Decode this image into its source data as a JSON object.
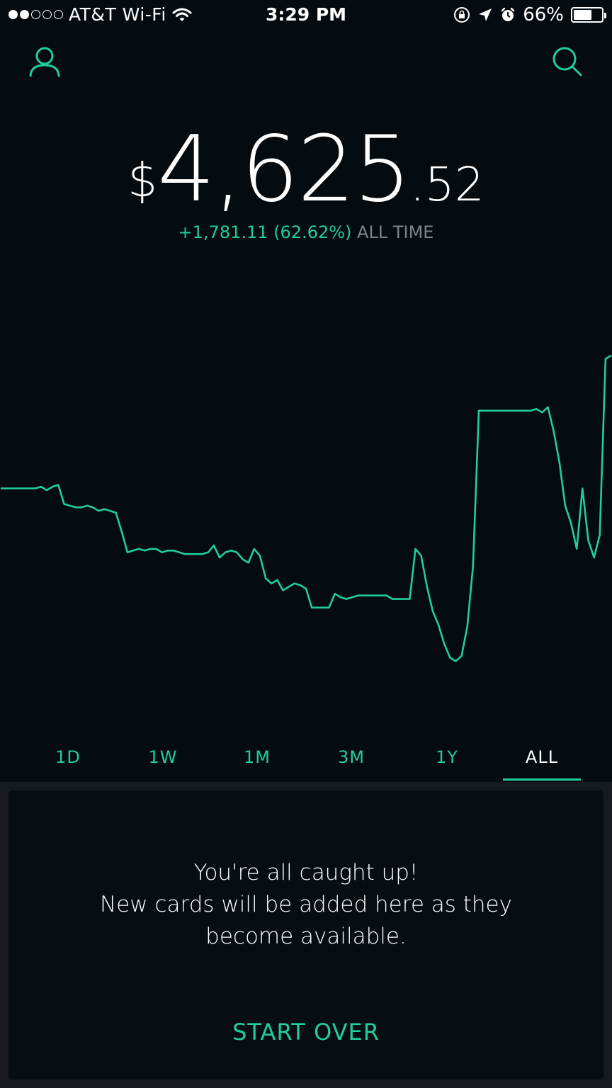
{
  "status_bar": {
    "carrier": "AT&T Wi-Fi",
    "time": "3:29 PM",
    "battery": "66%",
    "battery_level": 0.66,
    "signal_bars_filled": 2,
    "signal_bars_total": 5
  },
  "header": {
    "profile_icon": "person-icon",
    "search_icon": "search-icon"
  },
  "portfolio": {
    "currency": "$",
    "value_main": "4,625",
    "value_cents": ".52",
    "change_amount": "+1,781.11 (62.62%)",
    "change_period": "ALL TIME"
  },
  "colors": {
    "accent": "#21ce99",
    "background": "#040b11",
    "muted": "#7f8487",
    "card_bg": "#060d13",
    "tray_bg": "#16191d"
  },
  "chart_data": {
    "type": "line",
    "series_values": [
      1935,
      1935,
      1935,
      1935,
      1935,
      1935,
      1935,
      1936,
      1934,
      1936,
      1937,
      1926,
      1925,
      1924,
      1924,
      1925,
      1924,
      1922,
      1923,
      1922,
      1921,
      1910,
      1898,
      1899,
      1900,
      1899,
      1900,
      1900,
      1898,
      1899,
      1899,
      1898,
      1897,
      1897,
      1897,
      1897,
      1898,
      1902,
      1895,
      1898,
      1899,
      1898,
      1894,
      1892,
      1900,
      1896,
      1883,
      1880,
      1882,
      1876,
      1878,
      1880,
      1879,
      1877,
      1866,
      1866,
      1866,
      1866,
      1874,
      1872,
      1871,
      1872,
      1873,
      1873,
      1873,
      1873,
      1873,
      1873,
      1871,
      1871,
      1871,
      1871,
      1900,
      1896,
      1878,
      1864,
      1856,
      1845,
      1837,
      1835,
      1838,
      1855,
      1890,
      1980,
      1980,
      1980,
      1980,
      1980,
      1980,
      1980,
      1980,
      1980,
      1980,
      1981,
      1979,
      1982,
      1968,
      1950,
      1925,
      1915,
      1900,
      1935,
      1905,
      1895,
      1908,
      2010,
      2012
    ],
    "ylim": [
      1820,
      2025
    ]
  },
  "range_tabs": [
    {
      "label": "1D"
    },
    {
      "label": "1W"
    },
    {
      "label": "1M"
    },
    {
      "label": "3M"
    },
    {
      "label": "1Y"
    },
    {
      "label": "ALL",
      "active": true
    }
  ],
  "card": {
    "line1": "You're all caught up!",
    "line2": "New cards will be added here as they",
    "line3": "become available.",
    "action": "START OVER"
  }
}
